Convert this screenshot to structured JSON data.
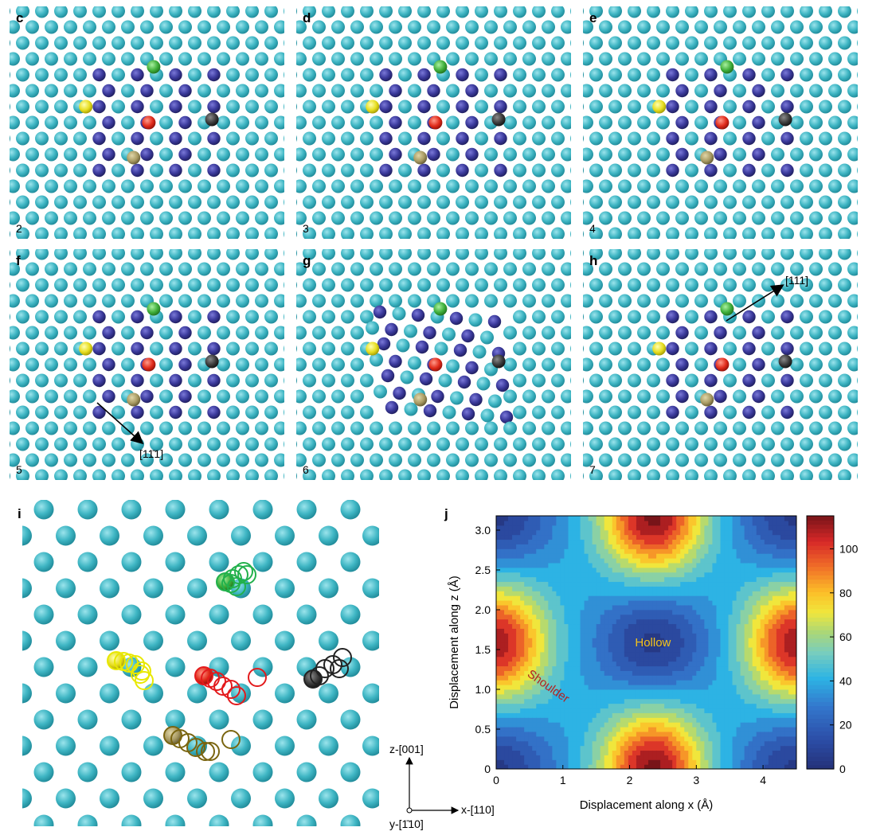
{
  "panels": [
    {
      "letter": "c",
      "step": "2",
      "arrow": null
    },
    {
      "letter": "d",
      "step": "3",
      "arrow": null
    },
    {
      "letter": "e",
      "step": "4",
      "arrow": null
    },
    {
      "letter": "f",
      "step": "5",
      "arrow": "[11̄1]"
    },
    {
      "letter": "g",
      "step": "6",
      "arrow": null
    },
    {
      "letter": "h",
      "step": "7",
      "arrow": "[111]"
    }
  ],
  "panel_i": {
    "letter": "i",
    "axis_labels": {
      "z": "z-[001]",
      "x": "x-[110]",
      "y": "y-[1̄10]"
    },
    "colors": {
      "lattice": "#3bb4c3",
      "green": "#22b14c",
      "yellow": "#e8e800",
      "red": "#e31a1c",
      "black": "#222222",
      "olive": "#7a6510"
    }
  },
  "panel_j": {
    "letter": "j",
    "annotations": {
      "hollow": "Hollow",
      "shoulder": "Shoulder"
    },
    "colors": {
      "hollow": "#f4c21a",
      "shoulder": "#b22222"
    }
  },
  "chart_data": {
    "type": "heatmap",
    "title": "",
    "xlabel": "Displacement along x (Å)",
    "ylabel": "Displacement along z (Å)",
    "xlim": [
      0,
      4.5
    ],
    "ylim": [
      0,
      3.18
    ],
    "xticks": [
      "0",
      "1",
      "2",
      "3",
      "4"
    ],
    "yticks": [
      "0",
      "0.5",
      "1.0",
      "1.5",
      "2.0",
      "2.5",
      "3.0"
    ],
    "colorbar": {
      "min": 0,
      "max": 115,
      "ticks": [
        "0",
        "20",
        "40",
        "60",
        "80",
        "100"
      ]
    },
    "features": [
      {
        "kind": "maximum",
        "x": 2.35,
        "z": 0.0,
        "value": 115
      },
      {
        "kind": "maximum",
        "x": 2.35,
        "z": 3.18,
        "value": 115
      },
      {
        "kind": "maximum",
        "x": 0.0,
        "z": 1.59,
        "value": 110
      },
      {
        "kind": "maximum",
        "x": 4.5,
        "z": 1.59,
        "value": 110
      },
      {
        "kind": "minimum",
        "x": 2.35,
        "z": 1.59,
        "value": 5
      },
      {
        "kind": "minimum",
        "x": 0.0,
        "z": 0.0,
        "value": 5
      },
      {
        "kind": "minimum",
        "x": 4.5,
        "z": 0.0,
        "value": 5
      },
      {
        "kind": "minimum",
        "x": 0.0,
        "z": 3.18,
        "value": 5
      },
      {
        "kind": "minimum",
        "x": 4.5,
        "z": 3.18,
        "value": 5
      }
    ]
  }
}
